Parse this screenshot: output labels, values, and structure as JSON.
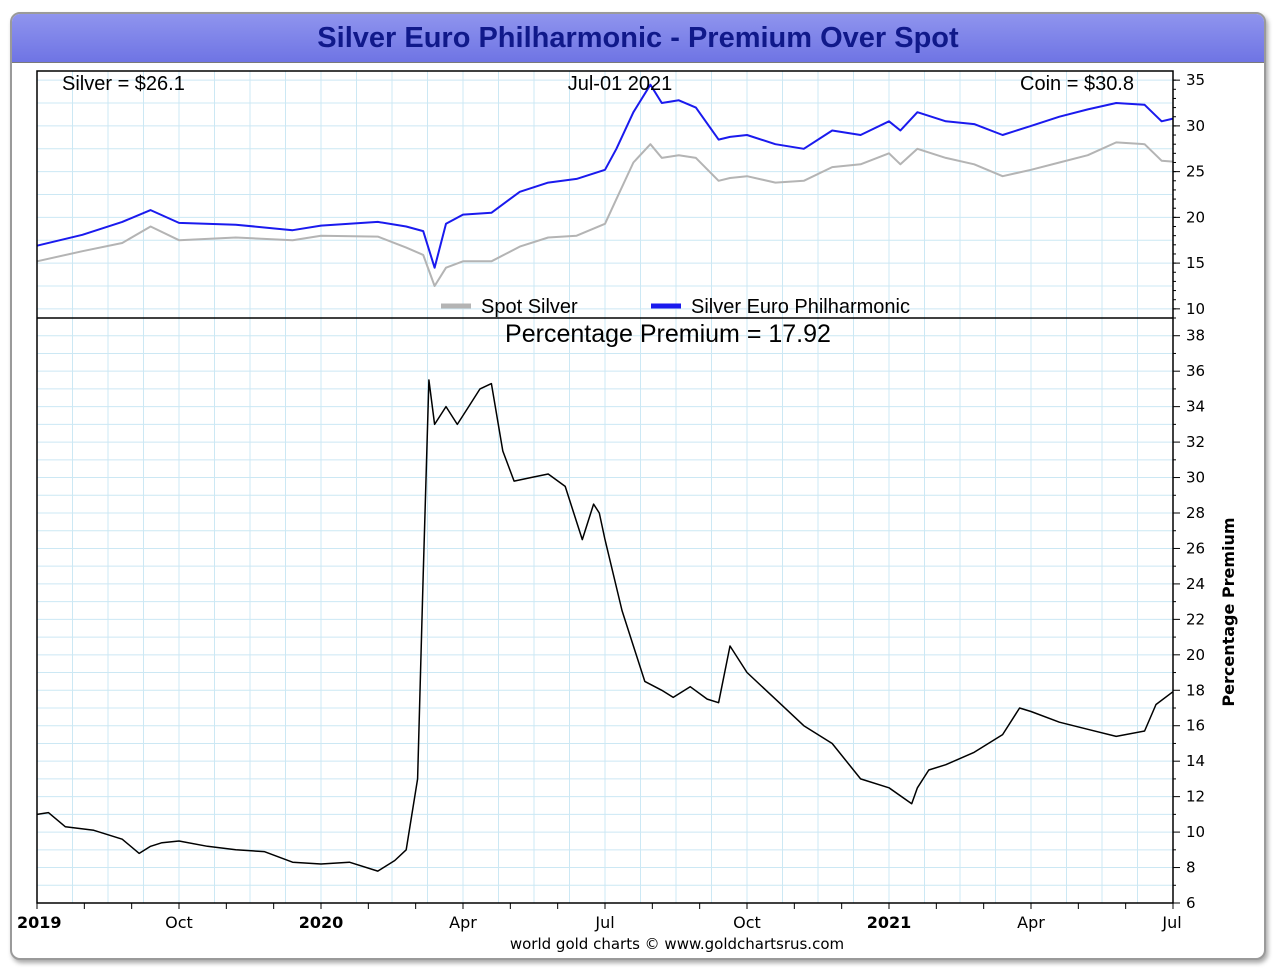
{
  "title": "Silver Euro Philharmonic - Premium Over Spot",
  "header": {
    "silver_label": "Silver = $26.1",
    "date_label": "Jul-01  2021",
    "coin_label": "Coin = $30.8"
  },
  "credit": "world gold charts © www.goldchartsrus.com",
  "colors": {
    "spot": "#b4b4b4",
    "coin": "#1a1aee",
    "premium": "#000000",
    "grid": "#cce8f4",
    "banner": "#7f84ea",
    "title": "#10198a"
  },
  "chart_data": [
    {
      "type": "line",
      "title": "",
      "ylim": [
        9,
        36
      ],
      "yticks": [
        "10",
        "15",
        "20",
        "25",
        "30",
        "35"
      ],
      "xlim": [
        2019.5,
        2021.5
      ],
      "legend": {
        "position": "bottom-center",
        "entries": [
          "Spot Silver",
          "Silver Euro Philharmonic"
        ]
      },
      "series": [
        {
          "name": "Spot Silver",
          "x": [
            2019.5,
            2019.58,
            2019.65,
            2019.7,
            2019.75,
            2019.85,
            2019.95,
            2020.0,
            2020.1,
            2020.15,
            2020.18,
            2020.2,
            2020.22,
            2020.25,
            2020.3,
            2020.35,
            2020.4,
            2020.45,
            2020.5,
            2020.52,
            2020.55,
            2020.58,
            2020.6,
            2020.63,
            2020.66,
            2020.7,
            2020.72,
            2020.75,
            2020.8,
            2020.85,
            2020.9,
            2020.95,
            2021.0,
            2021.02,
            2021.05,
            2021.1,
            2021.15,
            2021.2,
            2021.25,
            2021.3,
            2021.35,
            2021.4,
            2021.45,
            2021.48,
            2021.5
          ],
          "values": [
            15.2,
            16.3,
            17.2,
            19.0,
            17.5,
            17.8,
            17.5,
            18.0,
            17.9,
            16.7,
            15.9,
            12.5,
            14.5,
            15.2,
            15.2,
            16.8,
            17.8,
            18.0,
            19.3,
            22.0,
            26.0,
            28.0,
            26.5,
            26.8,
            26.5,
            24.0,
            24.3,
            24.5,
            23.8,
            24.0,
            25.5,
            25.8,
            27.0,
            25.8,
            27.5,
            26.5,
            25.8,
            24.5,
            25.2,
            26.0,
            26.8,
            28.2,
            28.0,
            26.2,
            26.1
          ]
        },
        {
          "name": "Silver Euro Philharmonic",
          "x": [
            2019.5,
            2019.58,
            2019.65,
            2019.7,
            2019.75,
            2019.85,
            2019.95,
            2020.0,
            2020.1,
            2020.15,
            2020.18,
            2020.2,
            2020.22,
            2020.25,
            2020.3,
            2020.35,
            2020.4,
            2020.45,
            2020.5,
            2020.52,
            2020.55,
            2020.58,
            2020.6,
            2020.63,
            2020.66,
            2020.7,
            2020.72,
            2020.75,
            2020.8,
            2020.85,
            2020.9,
            2020.95,
            2021.0,
            2021.02,
            2021.05,
            2021.1,
            2021.15,
            2021.2,
            2021.25,
            2021.3,
            2021.35,
            2021.4,
            2021.45,
            2021.48,
            2021.5
          ],
          "values": [
            16.9,
            18.1,
            19.5,
            20.8,
            19.4,
            19.2,
            18.6,
            19.1,
            19.5,
            19.0,
            18.5,
            14.5,
            19.3,
            20.3,
            20.5,
            22.8,
            23.8,
            24.2,
            25.2,
            27.5,
            31.5,
            34.5,
            32.5,
            32.8,
            32.0,
            28.5,
            28.8,
            29.0,
            28.0,
            27.5,
            29.5,
            29.0,
            30.5,
            29.5,
            31.5,
            30.5,
            30.2,
            29.0,
            30.0,
            31.0,
            31.8,
            32.5,
            32.3,
            30.5,
            30.8
          ]
        }
      ]
    },
    {
      "type": "line",
      "title": "Percentage Premium = 17.92",
      "ylabel": "Percentage Premium",
      "ylim": [
        6,
        39
      ],
      "yticks": [
        "6",
        "8",
        "10",
        "12",
        "14",
        "16",
        "18",
        "20",
        "22",
        "24",
        "26",
        "28",
        "30",
        "32",
        "34",
        "36",
        "38"
      ],
      "xlim": [
        2019.5,
        2021.5
      ],
      "xticks": [
        {
          "label": "2019",
          "x": 2019.5,
          "bold": true
        },
        {
          "label": "Oct",
          "x": 2019.75,
          "bold": false
        },
        {
          "label": "2020",
          "x": 2020.0,
          "bold": true
        },
        {
          "label": "Apr",
          "x": 2020.25,
          "bold": false
        },
        {
          "label": "Jul",
          "x": 2020.5,
          "bold": false
        },
        {
          "label": "Oct",
          "x": 2020.75,
          "bold": false
        },
        {
          "label": "2021",
          "x": 2021.0,
          "bold": true
        },
        {
          "label": "Apr",
          "x": 2021.25,
          "bold": false
        },
        {
          "label": "Jul",
          "x": 2021.5,
          "bold": false
        }
      ],
      "series": [
        {
          "name": "Percentage Premium",
          "x": [
            2019.5,
            2019.52,
            2019.55,
            2019.6,
            2019.65,
            2019.68,
            2019.7,
            2019.72,
            2019.75,
            2019.8,
            2019.85,
            2019.9,
            2019.95,
            2020.0,
            2020.05,
            2020.1,
            2020.13,
            2020.15,
            2020.17,
            2020.18,
            2020.19,
            2020.2,
            2020.22,
            2020.24,
            2020.26,
            2020.28,
            2020.3,
            2020.32,
            2020.34,
            2020.37,
            2020.4,
            2020.43,
            2020.46,
            2020.48,
            2020.49,
            2020.5,
            2020.53,
            2020.55,
            2020.57,
            2020.6,
            2020.62,
            2020.65,
            2020.68,
            2020.7,
            2020.72,
            2020.75,
            2020.8,
            2020.85,
            2020.9,
            2020.95,
            2021.0,
            2021.04,
            2021.05,
            2021.07,
            2021.1,
            2021.15,
            2021.2,
            2021.23,
            2021.25,
            2021.3,
            2021.35,
            2021.4,
            2021.45,
            2021.47,
            2021.5
          ],
          "values": [
            11.0,
            11.1,
            10.3,
            10.1,
            9.6,
            8.8,
            9.2,
            9.4,
            9.5,
            9.2,
            9.0,
            8.9,
            8.3,
            8.2,
            8.3,
            7.8,
            8.4,
            9.0,
            13.0,
            24.5,
            35.5,
            33.0,
            34.0,
            33.0,
            34.0,
            35.0,
            35.3,
            31.5,
            29.8,
            30.0,
            30.2,
            29.5,
            26.5,
            28.5,
            28.0,
            26.5,
            22.5,
            20.5,
            18.5,
            18.0,
            17.6,
            18.2,
            17.5,
            17.3,
            20.5,
            19.0,
            17.5,
            16.0,
            15.0,
            13.0,
            12.5,
            11.6,
            12.5,
            13.5,
            13.8,
            14.5,
            15.5,
            17.0,
            16.8,
            16.2,
            15.8,
            15.4,
            15.7,
            17.2,
            17.92
          ]
        }
      ]
    }
  ]
}
